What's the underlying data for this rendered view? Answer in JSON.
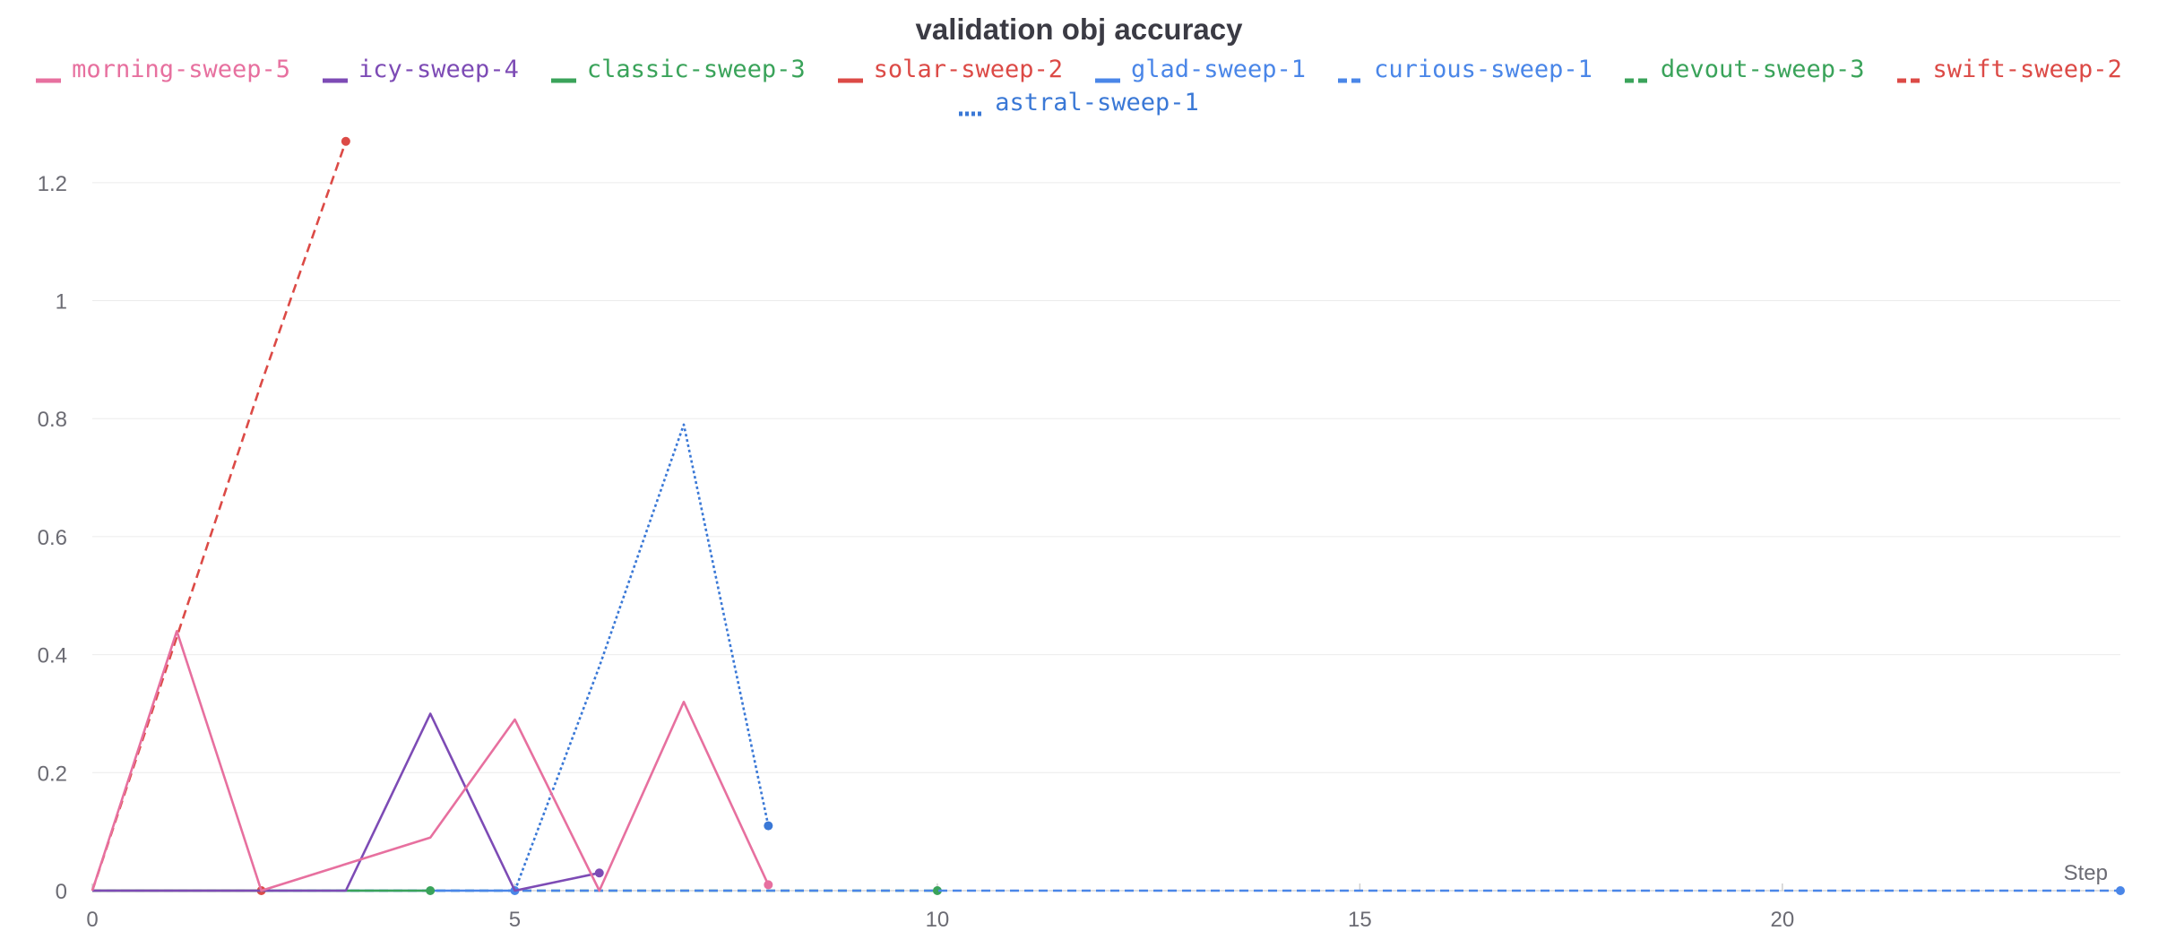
{
  "chart_data": {
    "type": "line",
    "title": "validation obj accuracy",
    "xlabel": "Step",
    "ylabel": "",
    "xlim": [
      0,
      24
    ],
    "ylim": [
      0,
      1.3
    ],
    "x_ticks": [
      "0",
      "5",
      "10",
      "15",
      "20"
    ],
    "y_ticks": [
      "0",
      "0.2",
      "0.4",
      "0.6",
      "0.8",
      "1",
      "1.2"
    ],
    "grid": true,
    "legend_position": "top",
    "series": [
      {
        "name": "morning-sweep-5",
        "color": "#e7709f",
        "dash": "solid",
        "points": [
          [
            0,
            0
          ],
          [
            1,
            0.44
          ],
          [
            2,
            0
          ],
          [
            4,
            0.09
          ],
          [
            5,
            0.29
          ],
          [
            6,
            0
          ],
          [
            7,
            0.32
          ],
          [
            8,
            0.01
          ]
        ]
      },
      {
        "name": "icy-sweep-4",
        "color": "#7d4bb5",
        "dash": "solid",
        "points": [
          [
            0,
            0
          ],
          [
            3,
            0
          ],
          [
            4,
            0.3
          ],
          [
            5,
            0
          ],
          [
            6,
            0.03
          ]
        ]
      },
      {
        "name": "classic-sweep-3",
        "color": "#3aa35a",
        "dash": "solid",
        "points": [
          [
            0,
            0
          ],
          [
            4,
            0
          ]
        ]
      },
      {
        "name": "solar-sweep-2",
        "color": "#dc4a46",
        "dash": "solid",
        "points": [
          [
            0,
            0
          ],
          [
            2,
            0
          ]
        ]
      },
      {
        "name": "glad-sweep-1",
        "color": "#4a86e8",
        "dash": "solid",
        "points": [
          [
            0,
            0
          ],
          [
            5,
            0
          ]
        ]
      },
      {
        "name": "curious-sweep-1",
        "color": "#4a86e8",
        "dash": "dashed",
        "points": [
          [
            0,
            0
          ],
          [
            24,
            0
          ]
        ]
      },
      {
        "name": "devout-sweep-3",
        "color": "#3aa35a",
        "dash": "dashed",
        "points": [
          [
            0,
            0
          ],
          [
            10,
            0
          ]
        ]
      },
      {
        "name": "swift-sweep-2",
        "color": "#dc4a46",
        "dash": "dashed",
        "points": [
          [
            0,
            0
          ],
          [
            1,
            0.43
          ],
          [
            2,
            0.86
          ],
          [
            3,
            1.27
          ]
        ]
      },
      {
        "name": "astral-sweep-1",
        "color": "#3a78d6",
        "dash": "dotted",
        "points": [
          [
            5,
            0
          ],
          [
            6,
            0.38
          ],
          [
            7,
            0.79
          ],
          [
            8,
            0.11
          ]
        ]
      }
    ]
  }
}
